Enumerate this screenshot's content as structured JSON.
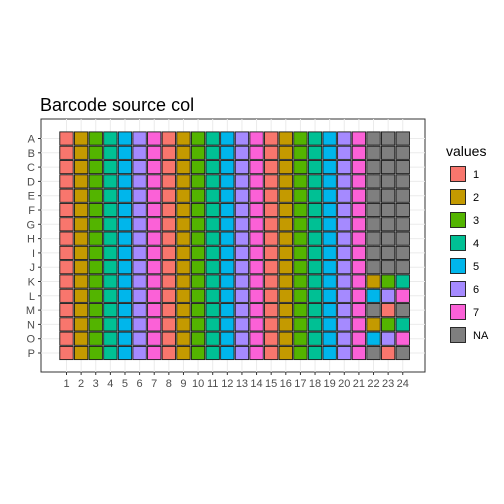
{
  "chart_data": {
    "type": "heatmap",
    "title": "Barcode source col",
    "x_categories": [
      "1",
      "2",
      "3",
      "4",
      "5",
      "6",
      "7",
      "8",
      "9",
      "10",
      "11",
      "12",
      "13",
      "14",
      "15",
      "16",
      "17",
      "18",
      "19",
      "20",
      "21",
      "22",
      "23",
      "24"
    ],
    "y_categories": [
      "A",
      "B",
      "C",
      "D",
      "E",
      "F",
      "G",
      "H",
      "I",
      "J",
      "K",
      "L",
      "M",
      "N",
      "O",
      "P"
    ],
    "legend": {
      "title": "values",
      "position": "right",
      "entries": [
        {
          "label": "1",
          "color": "#F8766D"
        },
        {
          "label": "2",
          "color": "#C49A00"
        },
        {
          "label": "3",
          "color": "#53B400"
        },
        {
          "label": "4",
          "color": "#00C094"
        },
        {
          "label": "5",
          "color": "#00B6EB"
        },
        {
          "label": "6",
          "color": "#A58AFF"
        },
        {
          "label": "7",
          "color": "#FB61D7"
        },
        {
          "label": "NA",
          "color": "#7F7F7F"
        }
      ]
    },
    "column_pattern": [
      "1",
      "2",
      "3",
      "4",
      "5",
      "6",
      "7",
      "1",
      "2",
      "3",
      "4",
      "5",
      "6",
      "7",
      "1",
      "2",
      "3",
      "4",
      "5",
      "6",
      "7"
    ],
    "columns_22_24": {
      "A": [
        "NA",
        "NA",
        "NA"
      ],
      "B": [
        "NA",
        "NA",
        "NA"
      ],
      "C": [
        "NA",
        "NA",
        "NA"
      ],
      "D": [
        "NA",
        "NA",
        "NA"
      ],
      "E": [
        "NA",
        "NA",
        "NA"
      ],
      "F": [
        "NA",
        "NA",
        "NA"
      ],
      "G": [
        "NA",
        "NA",
        "NA"
      ],
      "H": [
        "NA",
        "NA",
        "NA"
      ],
      "I": [
        "NA",
        "NA",
        "NA"
      ],
      "J": [
        "NA",
        "NA",
        "NA"
      ],
      "K": [
        "2",
        "3",
        "4"
      ],
      "L": [
        "5",
        "6",
        "7"
      ],
      "M": [
        "NA",
        "1",
        "NA"
      ],
      "N": [
        "2",
        "3",
        "4"
      ],
      "O": [
        "5",
        "6",
        "7"
      ],
      "P": [
        "NA",
        "1",
        "NA"
      ]
    },
    "grid": true
  }
}
